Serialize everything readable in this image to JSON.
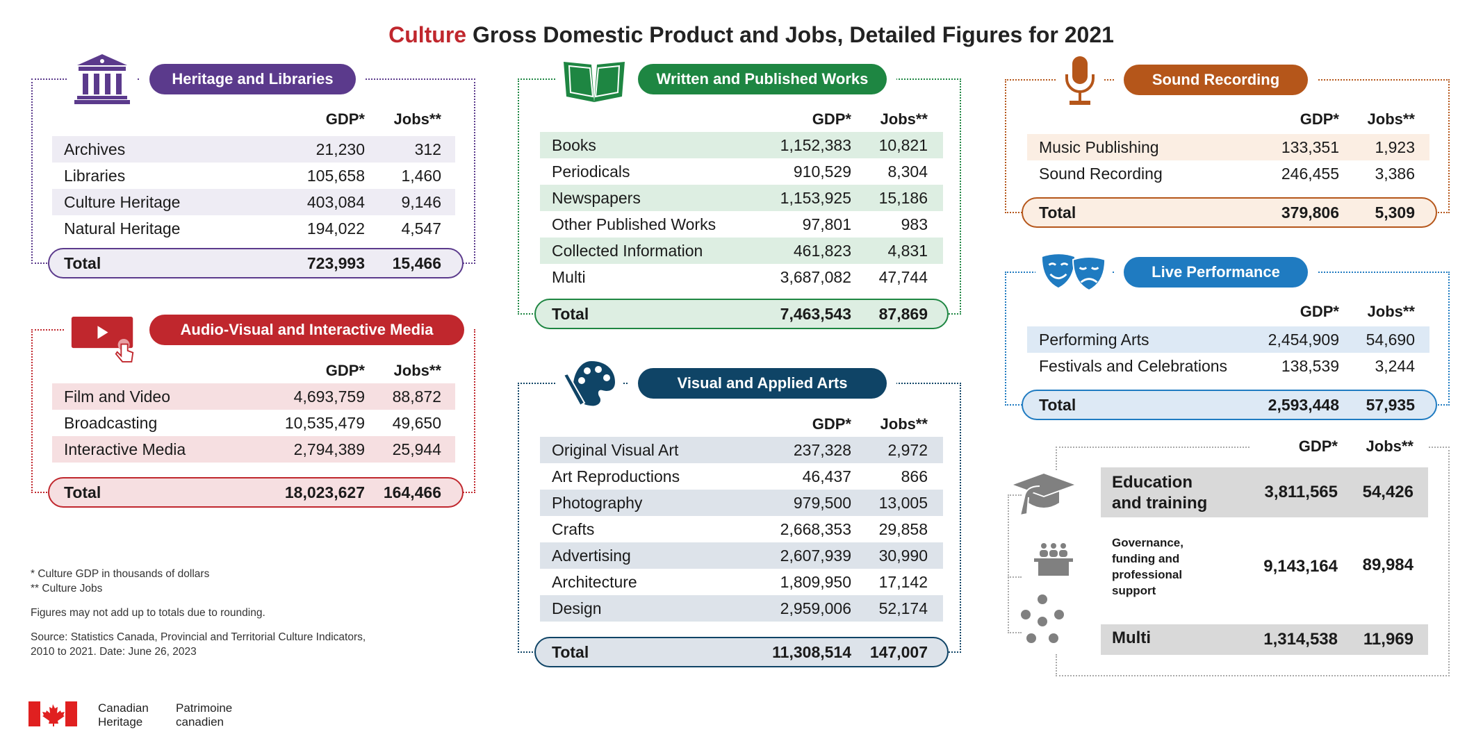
{
  "title": {
    "highlight": "Culture",
    "rest": " Gross Domestic Product and Jobs, Detailed Figures for 2021"
  },
  "columns": {
    "gdp": "GDP*",
    "jobs": "Jobs**"
  },
  "colors": {
    "heritage": "#5b3a8c",
    "av": "#c0272d",
    "written": "#1e8642",
    "visual": "#0f4466",
    "sound": "#b5561a",
    "live": "#1f7bc1",
    "other": "#808080"
  },
  "heritage": {
    "title": "Heritage and Libraries",
    "icon": "museum-icon",
    "rows": [
      [
        "Archives",
        "21,230",
        "312"
      ],
      [
        "Libraries",
        "105,658",
        "1,460"
      ],
      [
        "Culture Heritage",
        "403,084",
        "9,146"
      ],
      [
        "Natural Heritage",
        "194,022",
        "4,547"
      ]
    ],
    "total": {
      "label": "Total",
      "gdp": "723,993",
      "jobs": "15,466"
    }
  },
  "av": {
    "title": "Audio-Visual and Interactive Media",
    "icon": "play-video-icon",
    "rows": [
      [
        "Film and Video",
        "4,693,759",
        "88,872"
      ],
      [
        "Broadcasting",
        "10,535,479",
        "49,650"
      ],
      [
        "Interactive Media",
        "2,794,389",
        "25,944"
      ]
    ],
    "total": {
      "label": "Total",
      "gdp": "18,023,627",
      "jobs": "164,466"
    }
  },
  "written": {
    "title": "Written and Published Works",
    "icon": "book-icon",
    "rows": [
      [
        "Books",
        "1,152,383",
        "10,821"
      ],
      [
        "Periodicals",
        "910,529",
        "8,304"
      ],
      [
        "Newspapers",
        "1,153,925",
        "15,186"
      ],
      [
        "Other Published Works",
        "97,801",
        "983"
      ],
      [
        "Collected Information",
        "461,823",
        "4,831"
      ],
      [
        "Multi",
        "3,687,082",
        "47,744"
      ]
    ],
    "total": {
      "label": "Total",
      "gdp": "7,463,543",
      "jobs": "87,869"
    }
  },
  "visual": {
    "title": "Visual and Applied Arts",
    "icon": "palette-icon",
    "rows": [
      [
        "Original Visual Art",
        "237,328",
        "2,972"
      ],
      [
        "Art Reproductions",
        "46,437",
        "866"
      ],
      [
        "Photography",
        "979,500",
        "13,005"
      ],
      [
        "Crafts",
        "2,668,353",
        "29,858"
      ],
      [
        "Advertising",
        "2,607,939",
        "30,990"
      ],
      [
        "Architecture",
        "1,809,950",
        "17,142"
      ],
      [
        "Design",
        "2,959,006",
        "52,174"
      ]
    ],
    "total": {
      "label": "Total",
      "gdp": "11,308,514",
      "jobs": "147,007"
    }
  },
  "sound": {
    "title": "Sound Recording",
    "icon": "microphone-icon",
    "rows": [
      [
        "Music Publishing",
        "133,351",
        "1,923"
      ],
      [
        "Sound Recording",
        "246,455",
        "3,386"
      ]
    ],
    "total": {
      "label": "Total",
      "gdp": "379,806",
      "jobs": "5,309"
    }
  },
  "live": {
    "title": "Live Performance",
    "icon": "theatre-masks-icon",
    "rows": [
      [
        "Performing Arts",
        "2,454,909",
        "54,690"
      ],
      [
        "Festivals and Celebrations",
        "138,539",
        "3,244"
      ]
    ],
    "total": {
      "label": "Total",
      "gdp": "2,593,448",
      "jobs": "57,935"
    }
  },
  "other": {
    "education": {
      "label1": "Education",
      "label2": "and training",
      "gdp": "3,811,565",
      "jobs": "54,426"
    },
    "governance": {
      "lines": [
        "Governance,",
        "funding and",
        "professional",
        "support"
      ],
      "gdp": "9,143,164",
      "jobs": "89,984"
    },
    "multi": {
      "label": "Multi",
      "gdp": "1,314,538",
      "jobs": "11,969"
    }
  },
  "footnotes": {
    "gdp_note": "* Culture GDP in thousands of dollars",
    "jobs_note": "** Culture Jobs",
    "rounding": "Figures may not add up to totals due to rounding.",
    "source1": "Source: Statistics Canada, Provincial and Territorial Culture Indicators,",
    "source2": "2010 to 2021. Date: June 26, 2023"
  },
  "logo": {
    "en1": "Canadian",
    "en2": "Heritage",
    "fr1": "Patrimoine",
    "fr2": "canadien"
  }
}
